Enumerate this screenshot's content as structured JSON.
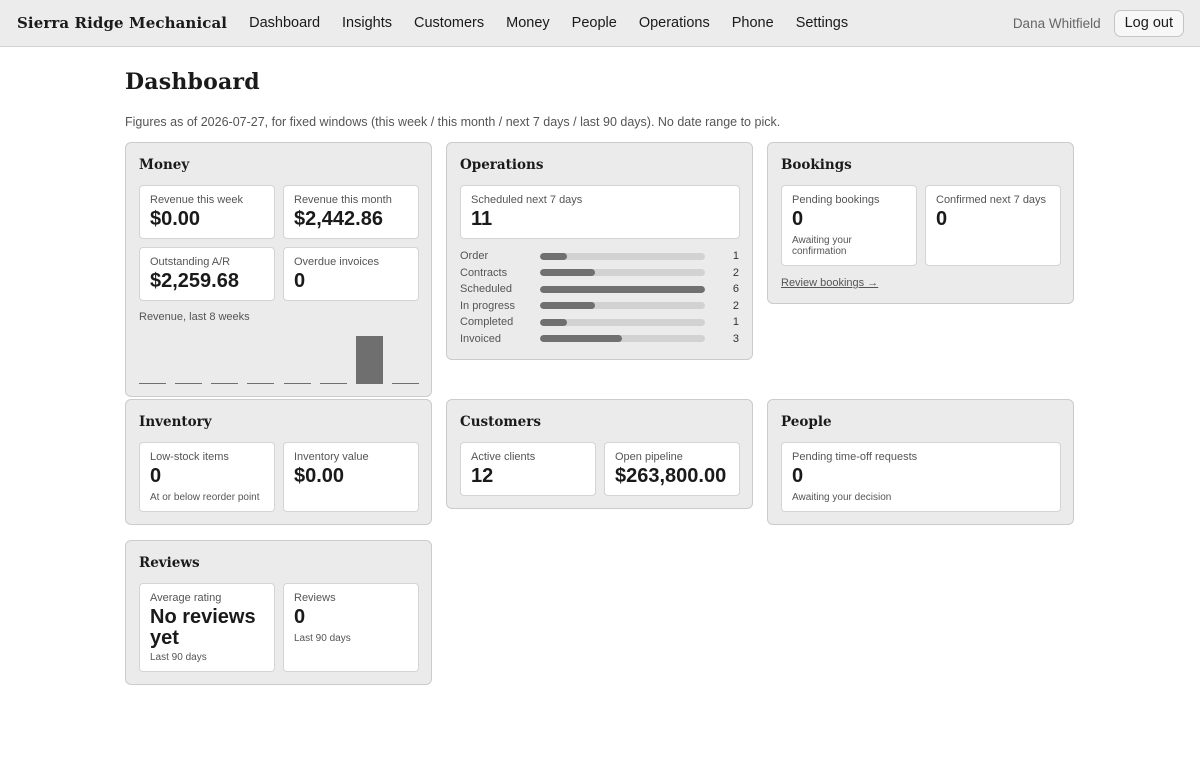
{
  "header": {
    "brand": "Sierra Ridge Mechanical",
    "nav": [
      "Dashboard",
      "Insights",
      "Customers",
      "Money",
      "People",
      "Operations",
      "Phone",
      "Settings"
    ],
    "user": "Dana Whitfield",
    "logout": "Log out"
  },
  "page": {
    "title": "Dashboard",
    "subtitle": "Figures as of 2026-07-27, for fixed windows (this week / this month / next 7 days / last 90 days). No date range to pick."
  },
  "money": {
    "title": "Money",
    "revenue_week_label": "Revenue this week",
    "revenue_week": "$0.00",
    "revenue_month_label": "Revenue this month",
    "revenue_month": "$2,442.86",
    "ar_label": "Outstanding A/R",
    "ar": "$2,259.68",
    "overdue_label": "Overdue invoices",
    "overdue": "0",
    "chart_title": "Revenue, last 8 weeks"
  },
  "chart_data": {
    "type": "bar",
    "title": "Revenue, last 8 weeks",
    "values": [
      0,
      0,
      0,
      0,
      0,
      55,
      2442.86,
      0
    ],
    "ylim": [
      0,
      2442.86
    ],
    "grid": false
  },
  "operations": {
    "title": "Operations",
    "scheduled_label": "Scheduled next 7 days",
    "scheduled": "11",
    "stages": [
      {
        "label": "Order",
        "count": "1",
        "fraction": 0.1667
      },
      {
        "label": "Contracts",
        "count": "2",
        "fraction": 0.3333
      },
      {
        "label": "Scheduled",
        "count": "6",
        "fraction": 1.0
      },
      {
        "label": "In progress",
        "count": "2",
        "fraction": 0.3333
      },
      {
        "label": "Completed",
        "count": "1",
        "fraction": 0.1667
      },
      {
        "label": "Invoiced",
        "count": "3",
        "fraction": 0.5
      }
    ]
  },
  "bookings": {
    "title": "Bookings",
    "pending_label": "Pending bookings",
    "pending": "0",
    "pending_note": "Awaiting your confirmation",
    "confirmed_label": "Confirmed next 7 days",
    "confirmed": "0",
    "review_link": "Review bookings →"
  },
  "inventory": {
    "title": "Inventory",
    "lowstock_label": "Low-stock items",
    "lowstock": "0",
    "lowstock_note": "At or below reorder point",
    "value_label": "Inventory value",
    "value": "$0.00"
  },
  "customers": {
    "title": "Customers",
    "active_label": "Active clients",
    "active": "12",
    "pipeline_label": "Open pipeline",
    "pipeline": "$263,800.00"
  },
  "people": {
    "title": "People",
    "timeoff_label": "Pending time-off requests",
    "timeoff": "0",
    "timeoff_note": "Awaiting your decision"
  },
  "reviews": {
    "title": "Reviews",
    "avg_label": "Average rating",
    "avg": "No reviews yet",
    "avg_note": "Last 90 days",
    "count_label": "Reviews",
    "count": "0",
    "count_note": "Last 90 days"
  }
}
